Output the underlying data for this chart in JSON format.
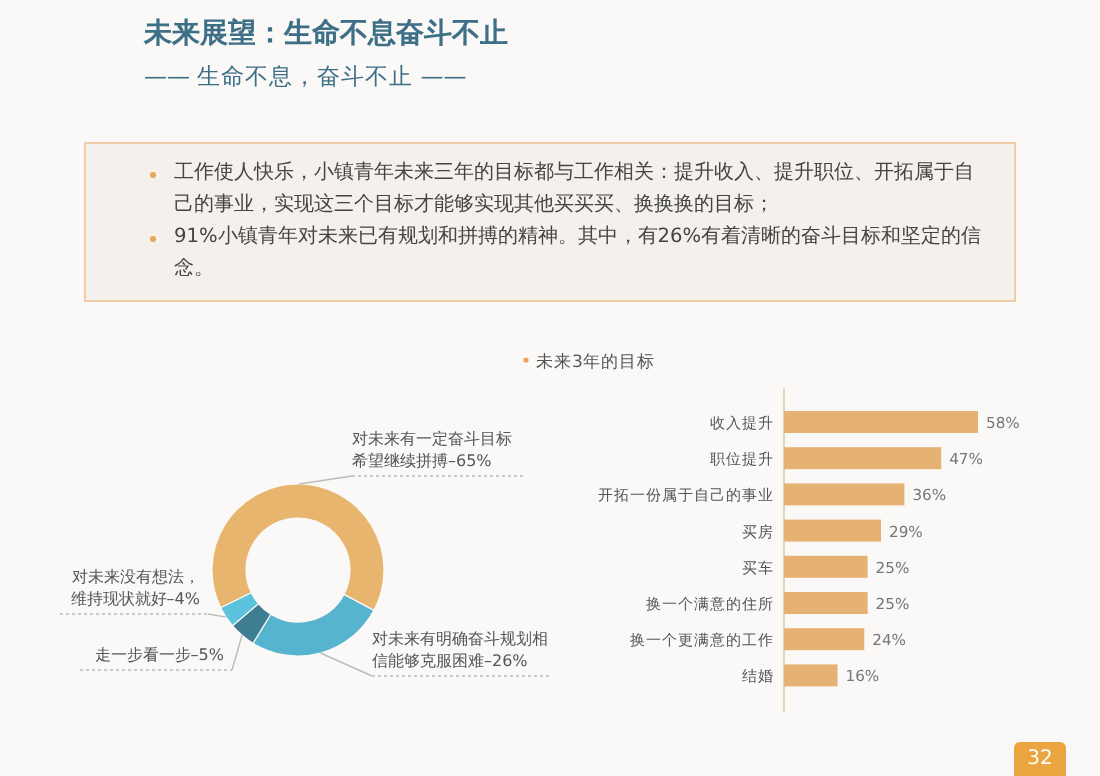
{
  "chart_data": [
    {
      "type": "other",
      "title": "未来展望：生命不息奋斗不止",
      "subtitle": "—— 生命不息，奋斗不止 ——",
      "annotations": [
        "工作使人快乐，小镇青年未来三年的目标都与工作相关：提升收入、提升职位、开拓属于自己的事业，实现这三个目标才能够实现其他买买买、换换换的目标；",
        "91%小镇青年对未来已有规划和拼搏的精神。其中，有26%有着清晰的奋斗目标和坚定的信念。",
        "32"
      ]
    },
    {
      "type": "donut",
      "categories": [
        "对未来有一定奋斗目标希望继续拼搏–65%",
        "对未来有明确奋斗规划相信能够克服困难–26%",
        "走一步看一步–5%",
        "对未来没有想法，维持现状就好–4%"
      ],
      "values": [
        65,
        26,
        5,
        4
      ],
      "colors": [
        "#e8b56f",
        "#56b4cf",
        "#3e7d92",
        "#5cc3de"
      ]
    },
    {
      "type": "bar",
      "orientation": "horizontal",
      "title": "未来3年的目标",
      "categories": [
        "收入提升",
        "职位提升",
        "开拓一份属于自己的事业",
        "买房",
        "买车",
        "换一个满意的住所",
        "换一个更满意的工作",
        "结婚"
      ],
      "values": [
        58,
        47,
        36,
        29,
        25,
        25,
        24,
        16
      ],
      "color": "#e6b273",
      "value_labels": [
        "58%",
        "47%",
        "36%",
        "29%",
        "25%",
        "25%",
        "24%",
        "16%"
      ]
    }
  ]
}
